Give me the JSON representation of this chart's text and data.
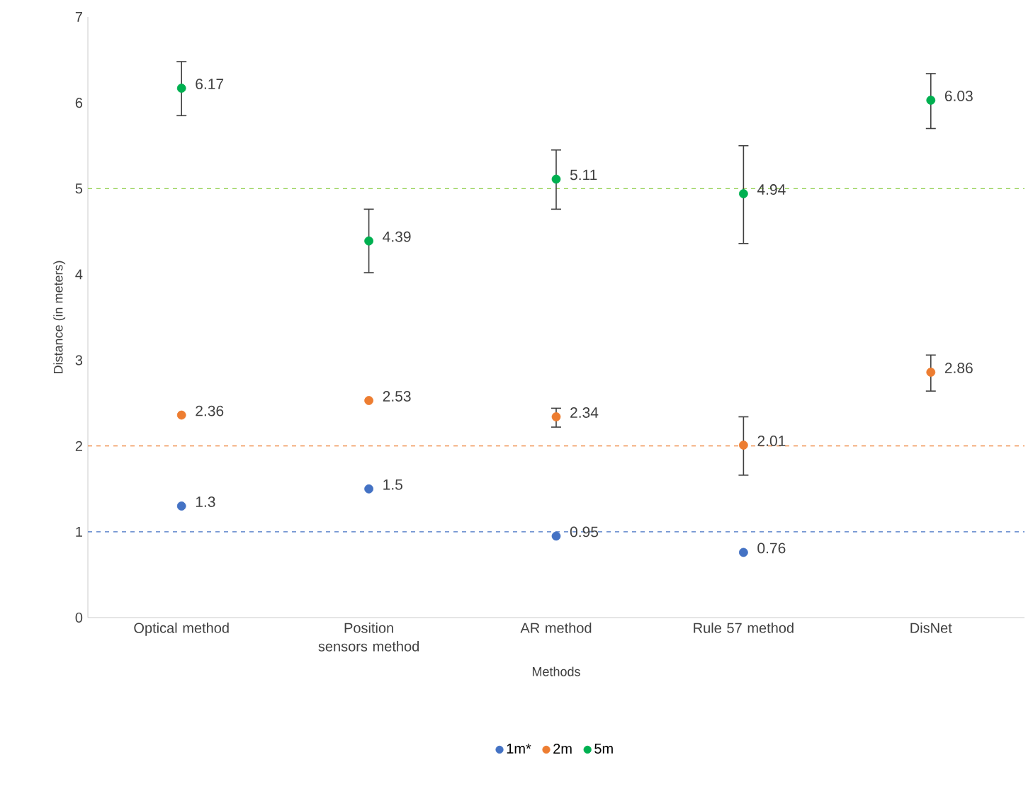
{
  "chart_data": {
    "type": "scatter",
    "xlabel": "Methods",
    "ylabel": "Distance (in meters)",
    "categories": [
      "Optical method",
      "Position sensors method",
      "AR method",
      "Rule 57 method",
      "DisNet"
    ],
    "series": [
      {
        "name": "1m*",
        "color": "#4472c4",
        "values": [
          1.3,
          1.5,
          0.95,
          0.76,
          null
        ]
      },
      {
        "name": "2m",
        "color": "#ed7d31",
        "values": [
          2.36,
          2.53,
          2.34,
          2.01,
          2.86
        ],
        "errors": [
          null,
          null,
          [
            2.22,
            2.44
          ],
          [
            1.66,
            2.34
          ],
          [
            2.64,
            3.06
          ]
        ]
      },
      {
        "name": "5m",
        "color": "#00b050",
        "values": [
          6.17,
          4.39,
          5.11,
          4.94,
          6.03
        ],
        "errors": [
          [
            5.85,
            6.48
          ],
          [
            4.02,
            4.76
          ],
          [
            4.76,
            5.45
          ],
          [
            4.36,
            5.5
          ],
          [
            5.7,
            6.34
          ]
        ]
      }
    ],
    "ylim": [
      0,
      7
    ],
    "yticks": [
      0,
      1,
      2,
      3,
      4,
      5,
      6,
      7
    ],
    "ref_lines": [
      {
        "axis": "y",
        "value": 1,
        "color": "#4472c4",
        "line_style": "dashed"
      },
      {
        "axis": "y",
        "value": 2,
        "color": "#ed7d31",
        "line_style": "dashed"
      },
      {
        "axis": "y",
        "value": 5,
        "color": "#92d050",
        "line_style": "dashed"
      }
    ],
    "data_labels": true,
    "marker": "circle",
    "grid": false,
    "legend": "bottom"
  }
}
